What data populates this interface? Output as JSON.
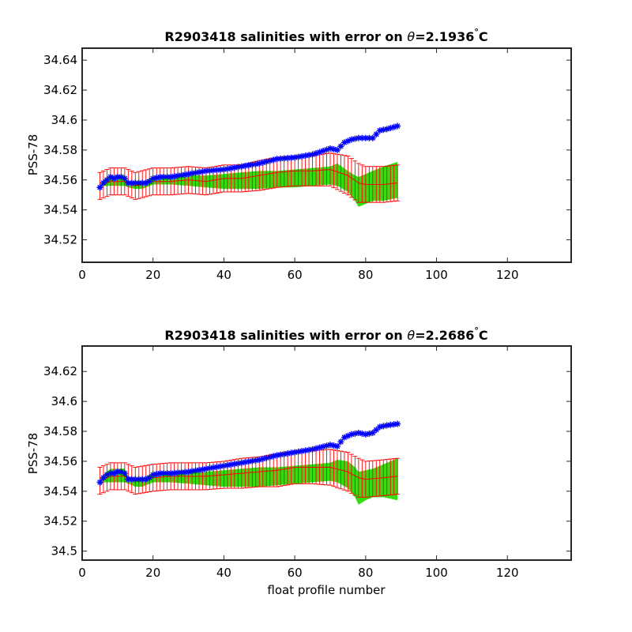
{
  "chart_data": [
    {
      "type": "line",
      "title_prefix": "R2903418 salinities with error on ",
      "theta_symbol": "θ",
      "theta_value": "=2.1936",
      "degree": "°",
      "unit": "C",
      "ylabel": "PSS-78",
      "xlabel": "",
      "xlim": [
        0,
        138
      ],
      "ylim": [
        34.505,
        34.648
      ],
      "xticks": [
        "0",
        "20",
        "40",
        "60",
        "80",
        "100",
        "120"
      ],
      "yticks": [
        "34.52",
        "34.54",
        "34.56",
        "34.58",
        "34.6",
        "34.62",
        "34.64"
      ],
      "grid": false,
      "series": [
        {
          "role": "float",
          "color": "#0000ff",
          "marker": "asterisk",
          "x_start": 5,
          "x_end": 89,
          "x": [
            5,
            6,
            7,
            8,
            9,
            10,
            11,
            12,
            13,
            14,
            15,
            16,
            17,
            18,
            19,
            20,
            22,
            25,
            30,
            35,
            40,
            45,
            50,
            55,
            60,
            65,
            70,
            72,
            74,
            76,
            78,
            80,
            82,
            84,
            86,
            89
          ],
          "values": [
            34.555,
            34.558,
            34.56,
            34.562,
            34.561,
            34.562,
            34.562,
            34.561,
            34.558,
            34.558,
            34.558,
            34.558,
            34.558,
            34.558,
            34.559,
            34.561,
            34.562,
            34.562,
            34.564,
            34.566,
            34.567,
            34.569,
            34.571,
            34.574,
            34.575,
            34.577,
            34.581,
            34.58,
            34.585,
            34.587,
            34.588,
            34.588,
            34.588,
            34.593,
            34.594,
            34.596
          ]
        },
        {
          "role": "mapped",
          "color": "#ff0000",
          "x": [
            5,
            8,
            12,
            15,
            20,
            25,
            30,
            35,
            40,
            45,
            50,
            55,
            60,
            65,
            70,
            75,
            78,
            80,
            85,
            89
          ],
          "values": [
            34.556,
            34.559,
            34.559,
            34.556,
            34.559,
            34.559,
            34.56,
            34.559,
            34.561,
            34.561,
            34.563,
            34.565,
            34.566,
            34.566,
            34.567,
            34.563,
            34.558,
            34.557,
            34.557,
            34.558
          ],
          "err": [
            0.009,
            0.009,
            0.009,
            0.009,
            0.009,
            0.009,
            0.009,
            0.009,
            0.009,
            0.009,
            0.01,
            0.01,
            0.01,
            0.01,
            0.011,
            0.013,
            0.013,
            0.012,
            0.012,
            0.012
          ]
        },
        {
          "role": "envelope",
          "color": "#33dd11",
          "x": [
            5,
            6,
            8,
            12,
            13,
            15,
            17,
            20,
            25,
            30,
            35,
            40,
            45,
            50,
            55,
            60,
            65,
            70,
            72,
            75,
            77,
            78,
            80,
            82,
            85,
            89
          ],
          "lower": [
            34.552,
            34.556,
            34.556,
            34.556,
            34.555,
            34.554,
            34.554,
            34.557,
            34.557,
            34.556,
            34.555,
            34.554,
            34.554,
            34.554,
            34.555,
            34.555,
            34.556,
            34.557,
            34.556,
            34.552,
            34.546,
            34.542,
            34.544,
            34.546,
            34.546,
            34.548
          ],
          "upper": [
            34.557,
            34.56,
            34.563,
            34.563,
            34.559,
            34.559,
            34.559,
            34.562,
            34.563,
            34.563,
            34.563,
            34.564,
            34.565,
            34.566,
            34.566,
            34.567,
            34.568,
            34.569,
            34.571,
            34.566,
            34.563,
            34.562,
            34.564,
            34.566,
            34.569,
            34.572
          ]
        }
      ]
    },
    {
      "type": "line",
      "title_prefix": "R2903418 salinities with error on ",
      "theta_symbol": "θ",
      "theta_value": "=2.2686",
      "degree": "°",
      "unit": "C",
      "ylabel": "PSS-78",
      "xlabel": "float profile number",
      "xlim": [
        0,
        138
      ],
      "ylim": [
        34.494,
        34.637
      ],
      "xticks": [
        "0",
        "20",
        "40",
        "60",
        "80",
        "100",
        "120"
      ],
      "yticks": [
        "34.5",
        "34.52",
        "34.54",
        "34.56",
        "34.58",
        "34.6",
        "34.62"
      ],
      "grid": false,
      "series": [
        {
          "role": "float",
          "color": "#0000ff",
          "marker": "asterisk",
          "x_start": 5,
          "x_end": 89,
          "x": [
            5,
            6,
            7,
            8,
            9,
            10,
            11,
            12,
            13,
            14,
            15,
            16,
            17,
            18,
            19,
            20,
            22,
            25,
            30,
            35,
            40,
            45,
            50,
            55,
            60,
            65,
            70,
            72,
            74,
            76,
            78,
            80,
            82,
            84,
            86,
            89
          ],
          "values": [
            34.546,
            34.549,
            34.551,
            34.552,
            34.552,
            34.553,
            34.553,
            34.552,
            34.548,
            34.548,
            34.548,
            34.548,
            34.548,
            34.548,
            34.549,
            34.551,
            34.552,
            34.552,
            34.553,
            34.555,
            34.557,
            34.559,
            34.561,
            34.564,
            34.566,
            34.568,
            34.571,
            34.57,
            34.576,
            34.578,
            34.579,
            34.578,
            34.579,
            34.583,
            34.584,
            34.585
          ]
        },
        {
          "role": "mapped",
          "color": "#ff0000",
          "x": [
            5,
            8,
            12,
            15,
            20,
            25,
            30,
            35,
            40,
            45,
            50,
            55,
            60,
            65,
            70,
            75,
            78,
            80,
            85,
            89
          ],
          "values": [
            34.547,
            34.55,
            34.55,
            34.547,
            34.549,
            34.55,
            34.55,
            34.55,
            34.551,
            34.552,
            34.553,
            34.554,
            34.556,
            34.556,
            34.556,
            34.553,
            34.549,
            34.548,
            34.549,
            34.55
          ],
          "err": [
            0.009,
            0.009,
            0.009,
            0.009,
            0.009,
            0.009,
            0.009,
            0.009,
            0.009,
            0.01,
            0.01,
            0.011,
            0.011,
            0.011,
            0.012,
            0.013,
            0.013,
            0.012,
            0.012,
            0.012
          ]
        },
        {
          "role": "envelope",
          "color": "#33dd11",
          "x": [
            5,
            6,
            8,
            12,
            13,
            15,
            17,
            20,
            25,
            30,
            35,
            40,
            45,
            50,
            55,
            60,
            65,
            70,
            72,
            75,
            77,
            78,
            80,
            82,
            85,
            89
          ],
          "lower": [
            34.543,
            34.546,
            34.546,
            34.546,
            34.545,
            34.543,
            34.543,
            34.546,
            34.546,
            34.545,
            34.544,
            34.543,
            34.543,
            34.543,
            34.544,
            34.545,
            34.546,
            34.547,
            34.546,
            34.542,
            34.536,
            34.531,
            34.534,
            34.536,
            34.536,
            34.534
          ],
          "upper": [
            34.548,
            34.551,
            34.555,
            34.555,
            34.55,
            34.549,
            34.549,
            34.552,
            34.553,
            34.553,
            34.553,
            34.554,
            34.555,
            34.556,
            34.556,
            34.557,
            34.558,
            34.559,
            34.561,
            34.56,
            34.556,
            34.553,
            34.554,
            34.555,
            34.558,
            34.562
          ]
        }
      ]
    }
  ]
}
